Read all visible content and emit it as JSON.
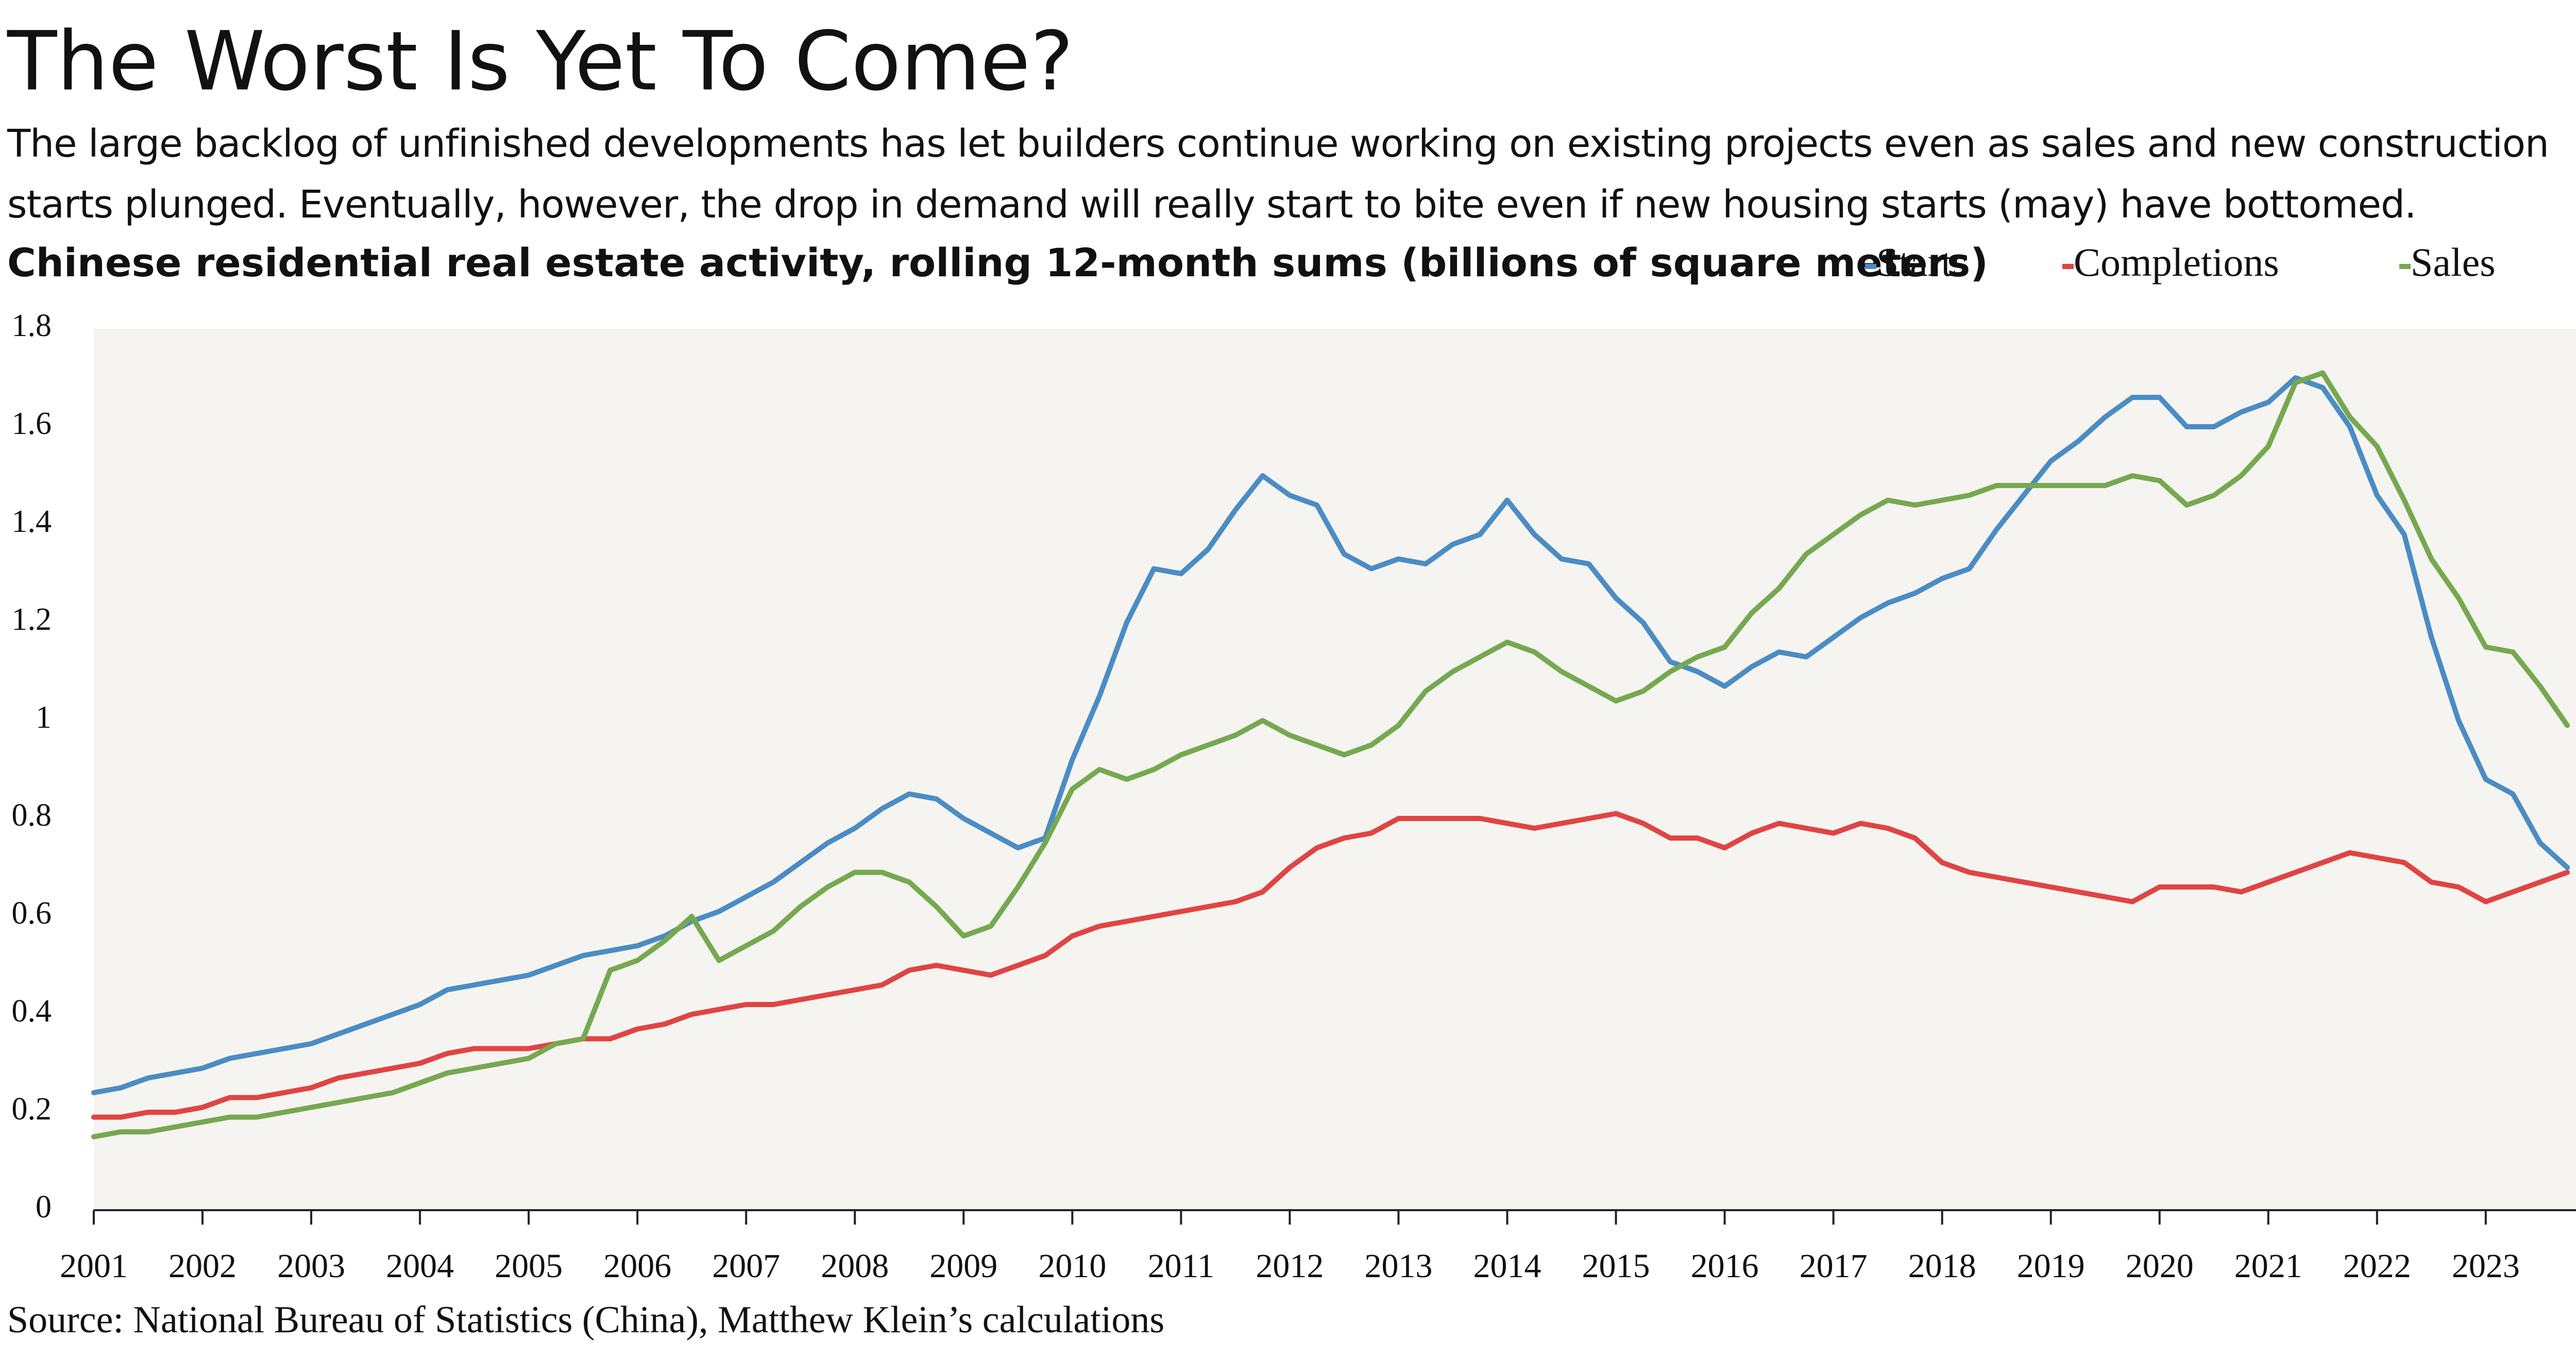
{
  "chart_data": {
    "type": "line",
    "title": "The Worst Is Yet To Come?",
    "subtitle": "The large backlog of unfinished developments has let builders continue working on existing projects even as sales and new construction starts plunged. Eventually, however, the drop in demand will really start to bite even if new housing starts (may) have bottomed.",
    "y_label": "Chinese residential real estate activity, rolling 12-month sums (billions of square meters)",
    "source": "Source: National Bureau of Statistics (China), Matthew Klein’s calculations",
    "x": [
      2001,
      2001.25,
      2001.5,
      2001.75,
      2002,
      2002.25,
      2002.5,
      2002.75,
      2003,
      2003.25,
      2003.5,
      2003.75,
      2004,
      2004.25,
      2004.5,
      2004.75,
      2005,
      2005.25,
      2005.5,
      2005.75,
      2006,
      2006.25,
      2006.5,
      2006.75,
      2007,
      2007.25,
      2007.5,
      2007.75,
      2008,
      2008.25,
      2008.5,
      2008.75,
      2009,
      2009.25,
      2009.5,
      2009.75,
      2010,
      2010.25,
      2010.5,
      2010.75,
      2011,
      2011.25,
      2011.5,
      2011.75,
      2012,
      2012.25,
      2012.5,
      2012.75,
      2013,
      2013.25,
      2013.5,
      2013.75,
      2014,
      2014.25,
      2014.5,
      2014.75,
      2015,
      2015.25,
      2015.5,
      2015.75,
      2016,
      2016.25,
      2016.5,
      2016.75,
      2017,
      2017.25,
      2017.5,
      2017.75,
      2018,
      2018.25,
      2018.5,
      2018.75,
      2019,
      2019.25,
      2019.5,
      2019.75,
      2020,
      2020.25,
      2020.5,
      2020.75,
      2021,
      2021.25,
      2021.5,
      2021.75,
      2022,
      2022.25,
      2022.5,
      2022.75,
      2023,
      2023.25,
      2023.5,
      2023.75
    ],
    "series": [
      {
        "name": "Starts",
        "color": "#4a8cc4",
        "values": [
          0.24,
          0.25,
          0.27,
          0.28,
          0.29,
          0.31,
          0.32,
          0.33,
          0.34,
          0.36,
          0.38,
          0.4,
          0.42,
          0.45,
          0.46,
          0.47,
          0.48,
          0.5,
          0.52,
          0.53,
          0.54,
          0.56,
          0.59,
          0.61,
          0.64,
          0.67,
          0.71,
          0.75,
          0.78,
          0.82,
          0.85,
          0.84,
          0.8,
          0.77,
          0.74,
          0.76,
          0.92,
          1.05,
          1.2,
          1.31,
          1.3,
          1.35,
          1.43,
          1.5,
          1.46,
          1.44,
          1.34,
          1.31,
          1.33,
          1.32,
          1.36,
          1.38,
          1.45,
          1.38,
          1.33,
          1.32,
          1.25,
          1.2,
          1.12,
          1.1,
          1.07,
          1.11,
          1.14,
          1.13,
          1.17,
          1.21,
          1.24,
          1.26,
          1.29,
          1.31,
          1.39,
          1.46,
          1.53,
          1.57,
          1.62,
          1.66,
          1.66,
          1.6,
          1.6,
          1.63,
          1.65,
          1.7,
          1.68,
          1.6,
          1.46,
          1.38,
          1.17,
          1.0,
          0.88,
          0.85,
          0.75,
          0.7
        ]
      },
      {
        "name": "Completions",
        "color": "#e04444",
        "values": [
          0.19,
          0.19,
          0.2,
          0.2,
          0.21,
          0.23,
          0.23,
          0.24,
          0.25,
          0.27,
          0.28,
          0.29,
          0.3,
          0.32,
          0.33,
          0.33,
          0.33,
          0.34,
          0.35,
          0.35,
          0.37,
          0.38,
          0.4,
          0.41,
          0.42,
          0.42,
          0.43,
          0.44,
          0.45,
          0.46,
          0.49,
          0.5,
          0.49,
          0.48,
          0.5,
          0.52,
          0.56,
          0.58,
          0.59,
          0.6,
          0.61,
          0.62,
          0.63,
          0.65,
          0.7,
          0.74,
          0.76,
          0.77,
          0.8,
          0.8,
          0.8,
          0.8,
          0.79,
          0.78,
          0.79,
          0.8,
          0.81,
          0.79,
          0.76,
          0.76,
          0.74,
          0.77,
          0.79,
          0.78,
          0.77,
          0.79,
          0.78,
          0.76,
          0.71,
          0.69,
          0.68,
          0.67,
          0.66,
          0.65,
          0.64,
          0.63,
          0.66,
          0.66,
          0.66,
          0.65,
          0.67,
          0.69,
          0.71,
          0.73,
          0.72,
          0.71,
          0.67,
          0.66,
          0.63,
          0.65,
          0.67,
          0.69
        ]
      },
      {
        "name": "Sales",
        "color": "#76a850",
        "values": [
          0.15,
          0.16,
          0.16,
          0.17,
          0.18,
          0.19,
          0.19,
          0.2,
          0.21,
          0.22,
          0.23,
          0.24,
          0.26,
          0.28,
          0.29,
          0.3,
          0.31,
          0.34,
          0.35,
          0.49,
          0.51,
          0.55,
          0.6,
          0.51,
          0.54,
          0.57,
          0.62,
          0.66,
          0.69,
          0.69,
          0.67,
          0.62,
          0.56,
          0.58,
          0.66,
          0.75,
          0.86,
          0.9,
          0.88,
          0.9,
          0.93,
          0.95,
          0.97,
          1.0,
          0.97,
          0.95,
          0.93,
          0.95,
          0.99,
          1.06,
          1.1,
          1.13,
          1.16,
          1.14,
          1.1,
          1.07,
          1.04,
          1.06,
          1.1,
          1.13,
          1.15,
          1.22,
          1.27,
          1.34,
          1.38,
          1.42,
          1.45,
          1.44,
          1.45,
          1.46,
          1.48,
          1.48,
          1.48,
          1.48,
          1.48,
          1.5,
          1.49,
          1.44,
          1.46,
          1.5,
          1.56,
          1.69,
          1.71,
          1.62,
          1.56,
          1.45,
          1.33,
          1.25,
          1.15,
          1.14,
          1.07,
          0.99
        ]
      }
    ],
    "xlim": [
      2001,
      2023.83
    ],
    "xticks": [
      2001,
      2002,
      2003,
      2004,
      2005,
      2006,
      2007,
      2008,
      2009,
      2010,
      2011,
      2012,
      2013,
      2014,
      2015,
      2016,
      2017,
      2018,
      2019,
      2020,
      2021,
      2022,
      2023
    ],
    "ylim": [
      0,
      1.8
    ],
    "yticks": [
      0,
      0.2,
      0.4,
      0.6,
      0.8,
      1,
      1.2,
      1.4,
      1.6,
      1.8
    ],
    "grid": false
  }
}
